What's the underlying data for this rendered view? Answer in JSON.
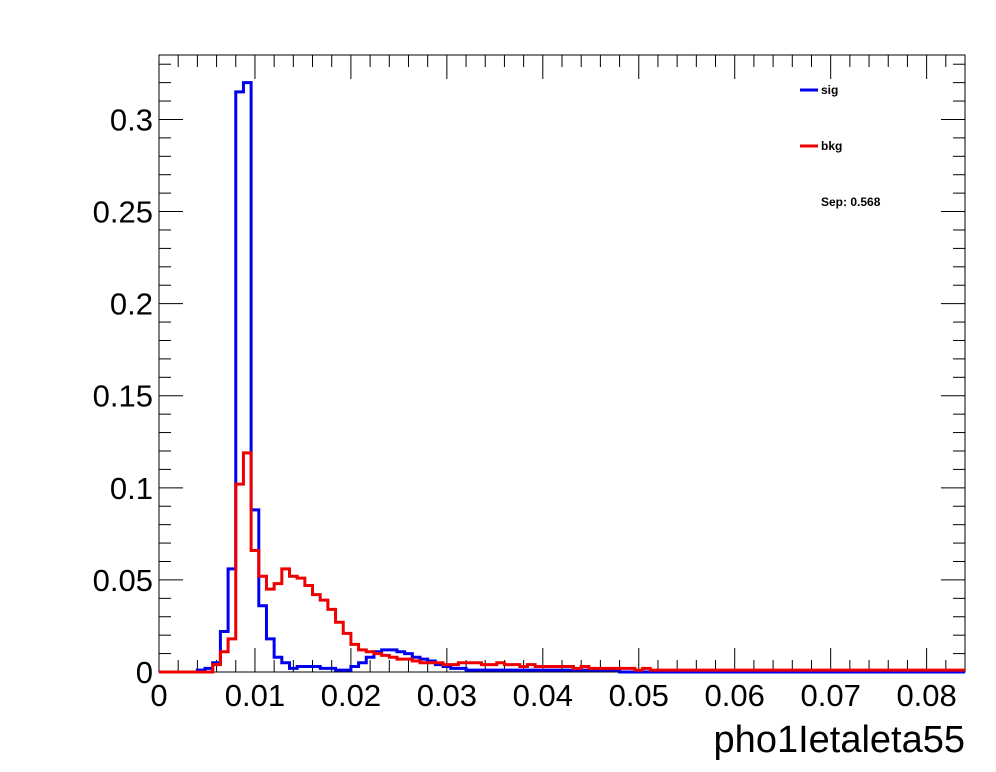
{
  "chart_data": {
    "type": "histogram-step",
    "xlabel": "pho1Ietaleta55",
    "ylabel": "",
    "xlim": [
      0,
      0.084
    ],
    "ylim": [
      0,
      0.335
    ],
    "x_ticks": [
      "0",
      "0.01",
      "0.02",
      "0.03",
      "0.04",
      "0.05",
      "0.06",
      "0.07",
      "0.08"
    ],
    "y_ticks": [
      "0",
      "0.05",
      "0.1",
      "0.15",
      "0.2",
      "0.25",
      "0.3"
    ],
    "bin_edges_start": 0.0,
    "bin_width": 0.0008,
    "series": [
      {
        "name": "sig",
        "color": "#0000ee",
        "values": [
          0,
          0,
          0,
          0,
          0,
          0.001,
          0.002,
          0.005,
          0.022,
          0.056,
          0.315,
          0.32,
          0.088,
          0.036,
          0.018,
          0.008,
          0.005,
          0.002,
          0.003,
          0.003,
          0.003,
          0.002,
          0.002,
          0.001,
          0.001,
          0.003,
          0.005,
          0.008,
          0.011,
          0.012,
          0.012,
          0.011,
          0.01,
          0.008,
          0.007,
          0.006,
          0.004,
          0.003,
          0.002,
          0.002,
          0.001,
          0.001,
          0.001,
          0.001,
          0.001,
          0.001,
          0.001,
          0.001,
          0.001,
          0.001,
          0.001,
          0.001,
          0.001,
          0.001,
          0.001,
          0.001,
          0.001,
          0.001,
          0.001,
          0.001,
          0,
          0,
          0,
          0,
          0,
          0,
          0,
          0,
          0,
          0,
          0,
          0,
          0,
          0,
          0,
          0,
          0,
          0,
          0,
          0,
          0,
          0,
          0,
          0,
          0,
          0,
          0,
          0,
          0,
          0,
          0,
          0,
          0,
          0,
          0,
          0,
          0,
          0,
          0,
          0,
          0,
          0,
          0,
          0,
          0
        ]
      },
      {
        "name": "bkg",
        "color": "#ee0000",
        "values": [
          0,
          0,
          0,
          0,
          0,
          0,
          0,
          0.004,
          0.011,
          0.018,
          0.102,
          0.119,
          0.066,
          0.052,
          0.045,
          0.048,
          0.056,
          0.052,
          0.051,
          0.047,
          0.042,
          0.039,
          0.034,
          0.027,
          0.021,
          0.015,
          0.012,
          0.011,
          0.01,
          0.009,
          0.008,
          0.007,
          0.007,
          0.006,
          0.005,
          0.005,
          0.005,
          0.004,
          0.004,
          0.005,
          0.005,
          0.005,
          0.004,
          0.004,
          0.005,
          0.004,
          0.004,
          0.003,
          0.004,
          0.003,
          0.003,
          0.003,
          0.003,
          0.003,
          0.002,
          0.003,
          0.002,
          0.002,
          0.002,
          0.002,
          0.002,
          0.002,
          0.001,
          0.002,
          0.001,
          0.001,
          0.001,
          0.001,
          0.001,
          0.001,
          0.001,
          0.001,
          0.001,
          0.001,
          0.001,
          0.001,
          0.001,
          0.001,
          0.001,
          0.001,
          0.001,
          0.001,
          0.001,
          0.001,
          0.001,
          0.001,
          0.001,
          0.001,
          0.001,
          0.001,
          0.001,
          0.001,
          0.001,
          0.001,
          0.001,
          0.001,
          0.001,
          0.001,
          0.001,
          0.001,
          0.001,
          0.001,
          0.001,
          0.001,
          0.001
        ]
      }
    ],
    "legend": {
      "placement": "top-right",
      "entries": [
        {
          "label": "sig",
          "color": "#0000ee"
        },
        {
          "label": "bkg",
          "color": "#ee0000"
        }
      ],
      "note": "Sep: 0.568"
    },
    "grid": false
  }
}
